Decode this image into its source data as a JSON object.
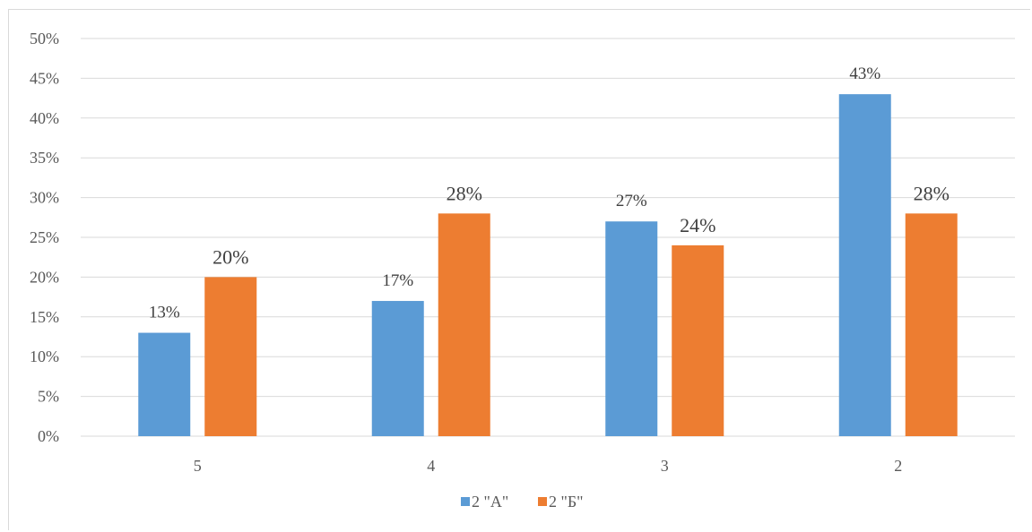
{
  "chart_data": {
    "type": "bar",
    "title": "",
    "xlabel": "",
    "ylabel": "",
    "categories": [
      "5",
      "4",
      "3",
      "2"
    ],
    "series": [
      {
        "name": "2 \"А\"",
        "values": [
          13,
          17,
          27,
          43
        ],
        "color": "#5b9bd5",
        "labels": [
          "13%",
          "17%",
          "27%",
          "43%"
        ]
      },
      {
        "name": "2 \"Б\"",
        "values": [
          20,
          28,
          24,
          28
        ],
        "color": "#ed7d31",
        "labels": [
          "20%",
          "28%",
          "24%",
          "28%"
        ]
      }
    ],
    "ylim": [
      0,
      50
    ],
    "yticks": [
      0,
      5,
      10,
      15,
      20,
      25,
      30,
      35,
      40,
      45,
      50
    ],
    "ytick_labels": [
      "0%",
      "5%",
      "10%",
      "15%",
      "20%",
      "25%",
      "30%",
      "35%",
      "40%",
      "45%",
      "50%"
    ],
    "grid": true,
    "legend_position": "bottom",
    "gridline_color": "#d9d9d9"
  }
}
